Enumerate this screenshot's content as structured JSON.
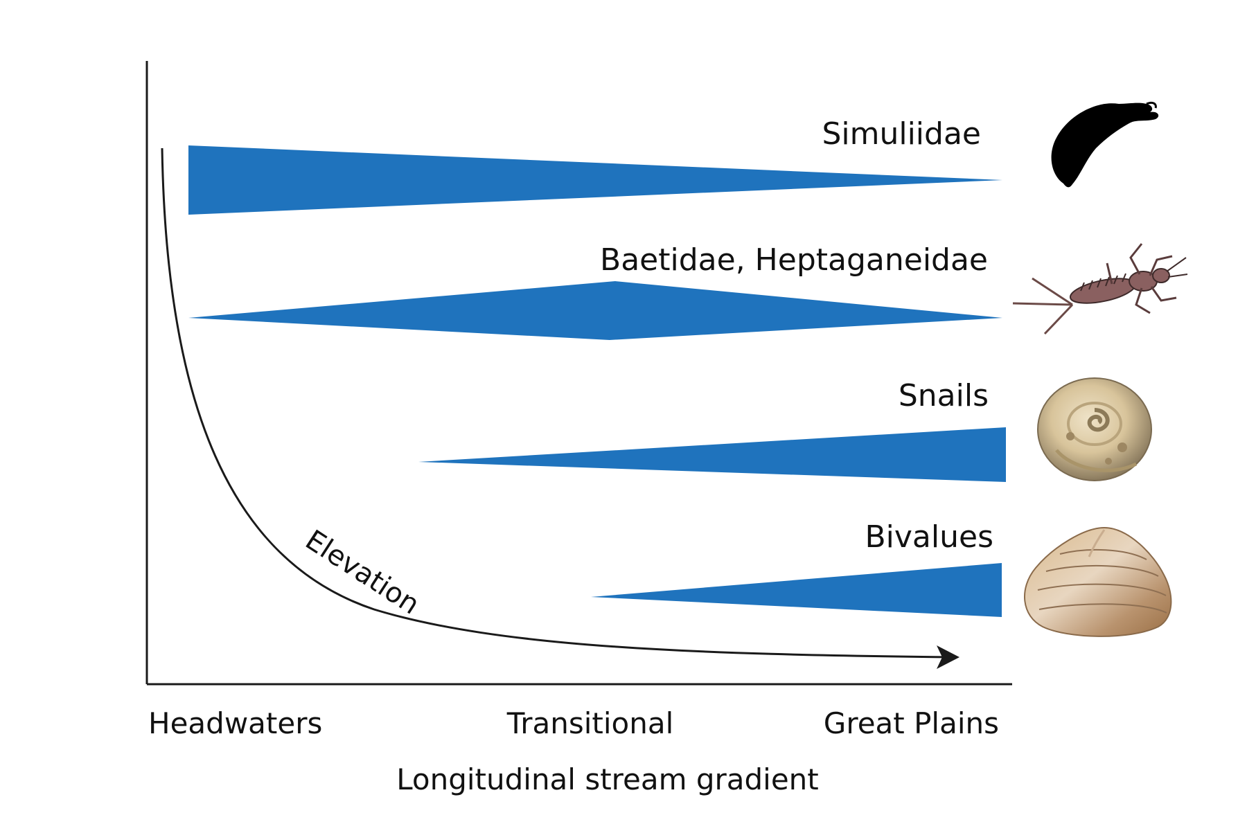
{
  "diagram": {
    "x_axis": {
      "title": "Longitudinal stream gradient",
      "categories": [
        "Headwaters",
        "Transitional",
        "Great Plains"
      ]
    },
    "curve": {
      "label": "Elevation"
    },
    "taxa": [
      {
        "name": "Simuliidae",
        "icon": "black-fly-larva-icon"
      },
      {
        "name": "Baetidae, Heptaganeidae",
        "icon": "mayfly-nymph-icon"
      },
      {
        "name": "Snails",
        "icon": "snail-shell-icon"
      },
      {
        "name": "Bivalues",
        "icon": "clam-shell-icon"
      }
    ],
    "colors": {
      "band": "#1f73bd",
      "axis": "#1a1a1a",
      "text": "#111111"
    }
  }
}
